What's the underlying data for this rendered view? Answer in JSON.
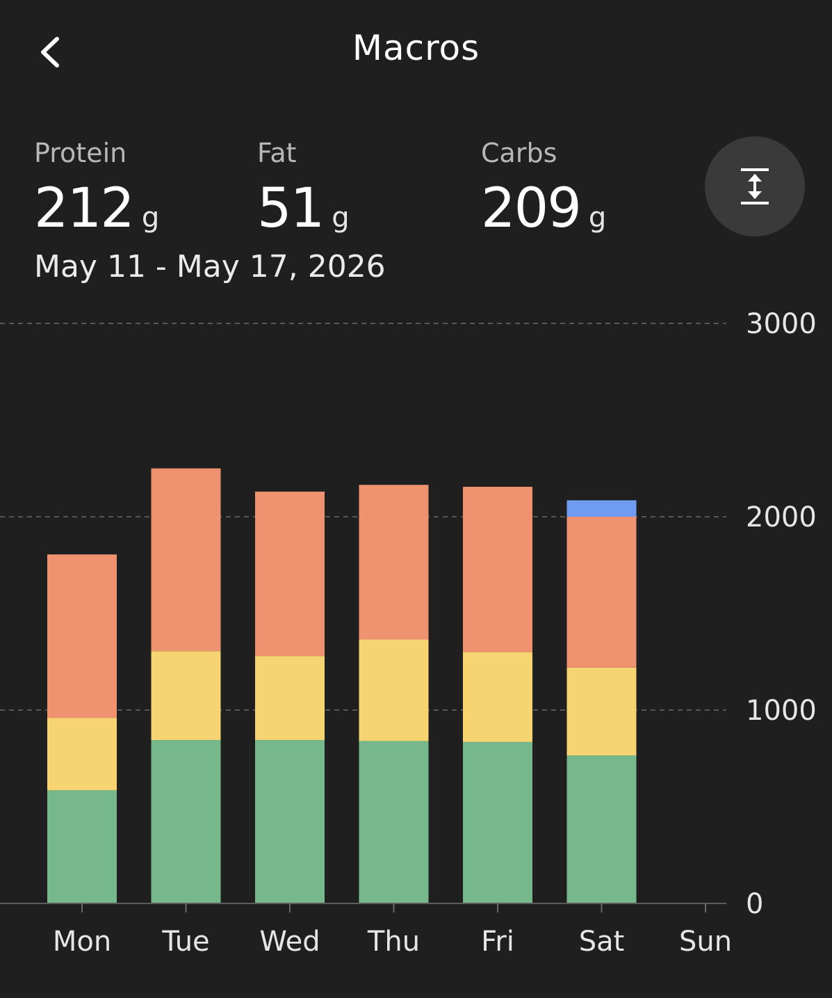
{
  "header": {
    "title": "Macros",
    "back_icon": "chevron-left-icon"
  },
  "summary": {
    "protein": {
      "label": "Protein",
      "value": "212",
      "unit": "g"
    },
    "fat": {
      "label": "Fat",
      "value": "51",
      "unit": "g"
    },
    "carbs": {
      "label": "Carbs",
      "value": "209",
      "unit": "g"
    },
    "date_range": "May 11 - May 17, 2026",
    "expand_icon": "expand-vertical-icon"
  },
  "colors": {
    "background": "#1f1f1f",
    "protein": "#76b88b",
    "fat": "#f6d472",
    "carbs": "#ef9270",
    "other": "#6f9cf2",
    "grid": "#6a6a6a",
    "axis_text": "#e6e6e6"
  },
  "chart_data": {
    "type": "bar",
    "stacked": true,
    "categories": [
      "Mon",
      "Tue",
      "Wed",
      "Thu",
      "Fri",
      "Sat",
      "Sun"
    ],
    "series": [
      {
        "key": "protein",
        "values": [
          585,
          845,
          845,
          840,
          835,
          765,
          0
        ]
      },
      {
        "key": "fat",
        "values": [
          375,
          460,
          435,
          525,
          465,
          455,
          0
        ]
      },
      {
        "key": "carbs",
        "values": [
          845,
          945,
          850,
          800,
          855,
          780,
          0
        ]
      },
      {
        "key": "other",
        "values": [
          0,
          0,
          0,
          0,
          0,
          85,
          0
        ]
      }
    ],
    "y_ticks": [
      "0",
      "1000",
      "2000",
      "3000"
    ],
    "ylim": [
      0,
      3000
    ],
    "grid": true,
    "y_axis_position": "right"
  }
}
